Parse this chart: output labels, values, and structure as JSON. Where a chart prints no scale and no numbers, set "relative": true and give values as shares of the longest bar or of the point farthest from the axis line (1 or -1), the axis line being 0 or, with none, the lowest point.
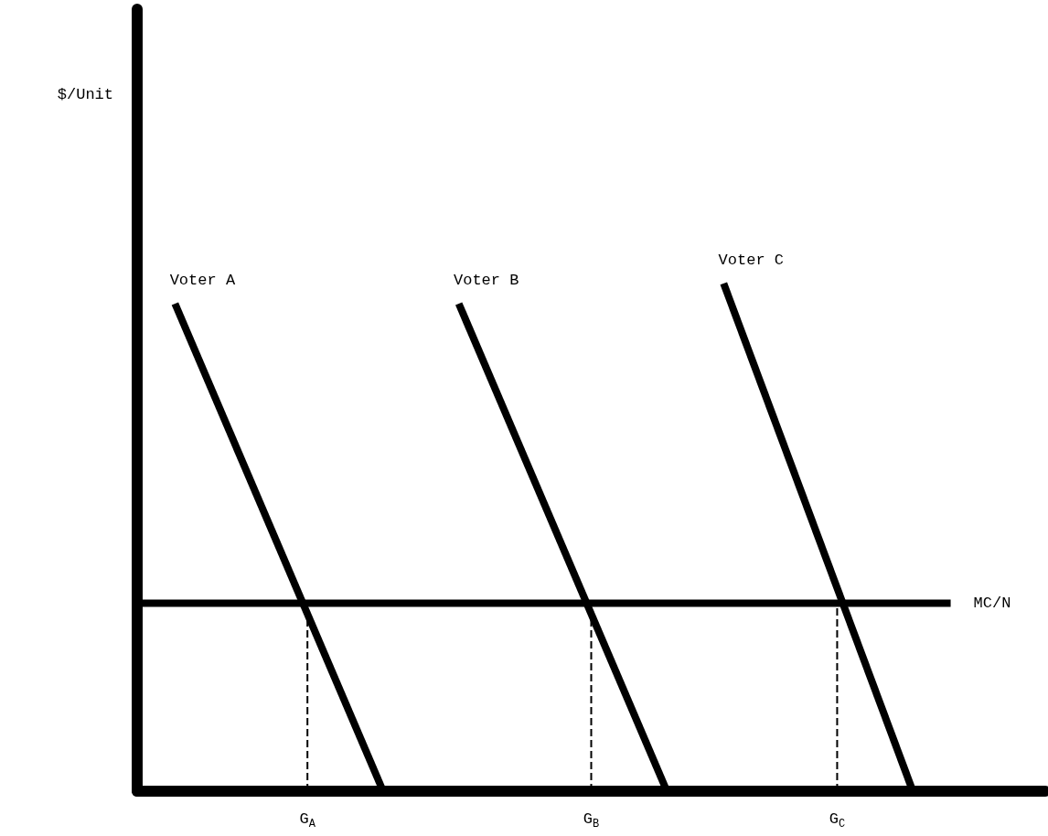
{
  "chart_data": {
    "type": "line",
    "relative": true,
    "annotations": [
      "$/Unit"
    ],
    "categories": [
      null,
      null,
      null,
      null,
      null,
      null,
      null,
      null,
      null,
      "G$_{A}$",
      null,
      null,
      null,
      null,
      null,
      null,
      null,
      null,
      null,
      null,
      null,
      null,
      null,
      null,
      "G$_{B}$",
      null,
      null,
      null,
      null,
      null,
      null,
      null,
      null,
      null,
      null,
      null,
      null,
      "G$_{C}$",
      null,
      null,
      null,
      null,
      null,
      null,
      null,
      null,
      null,
      null,
      null
    ],
    "series": [
      {
        "name": "Voter A",
        "color": "#000000",
        "values": [
          null,
          null,
          0.96,
          null,
          null,
          null,
          null,
          null,
          null,
          null,
          null,
          null,
          null,
          0,
          null,
          null,
          null,
          null,
          null,
          null,
          null,
          null,
          null,
          null,
          null,
          null,
          null,
          null,
          null,
          null,
          null,
          null,
          null,
          null,
          null,
          null,
          null,
          null,
          null,
          null,
          null,
          null,
          null,
          null,
          null,
          null,
          null,
          null,
          null
        ]
      },
      {
        "name": "Voter B",
        "color": "#000000",
        "values": [
          null,
          null,
          null,
          null,
          null,
          null,
          null,
          null,
          null,
          null,
          null,
          null,
          null,
          null,
          null,
          null,
          null,
          0.96,
          null,
          null,
          null,
          null,
          null,
          null,
          null,
          null,
          null,
          null,
          0,
          null,
          null,
          null,
          null,
          null,
          null,
          null,
          null,
          null,
          null,
          null,
          null,
          null,
          null,
          null,
          null,
          null,
          null,
          null,
          null
        ]
      },
      {
        "name": "Voter C",
        "color": "#000000",
        "values": [
          null,
          null,
          null,
          null,
          null,
          null,
          null,
          null,
          null,
          null,
          null,
          null,
          null,
          null,
          null,
          null,
          null,
          null,
          null,
          null,
          null,
          null,
          null,
          null,
          null,
          null,
          null,
          null,
          null,
          null,
          null,
          1,
          null,
          null,
          null,
          null,
          null,
          null,
          null,
          null,
          null,
          0,
          null,
          null,
          null,
          null,
          null,
          null,
          null
        ]
      },
      {
        "name": "MC/N",
        "color": "#000000",
        "values": [
          0.37,
          null,
          null,
          null,
          null,
          null,
          null,
          null,
          null,
          null,
          null,
          null,
          null,
          null,
          null,
          null,
          null,
          null,
          null,
          null,
          null,
          null,
          null,
          null,
          null,
          null,
          null,
          null,
          null,
          null,
          null,
          null,
          null,
          null,
          null,
          null,
          null,
          null,
          null,
          null,
          null,
          null,
          null,
          0.37,
          null,
          null,
          null,
          null,
          null
        ]
      },
      {
        "color": "#000000",
        "x": [
          "G$_{A}$",
          "G$_{A}$"
        ],
        "values": [
          0,
          0.37
        ],
        "line_style": "dashed"
      },
      {
        "color": "#000000",
        "x": [
          "G$_{B}$",
          "G$_{B}$"
        ],
        "values": [
          0,
          0.37
        ],
        "line_style": "dashed"
      },
      {
        "color": "#000000",
        "x": [
          "G$_{C}$",
          "G$_{C}$"
        ],
        "values": [
          0,
          0.37
        ],
        "line_style": "dashed"
      }
    ],
    "grid": false,
    "legend": false,
    "marker": "none",
    "line_style": "solid"
  }
}
